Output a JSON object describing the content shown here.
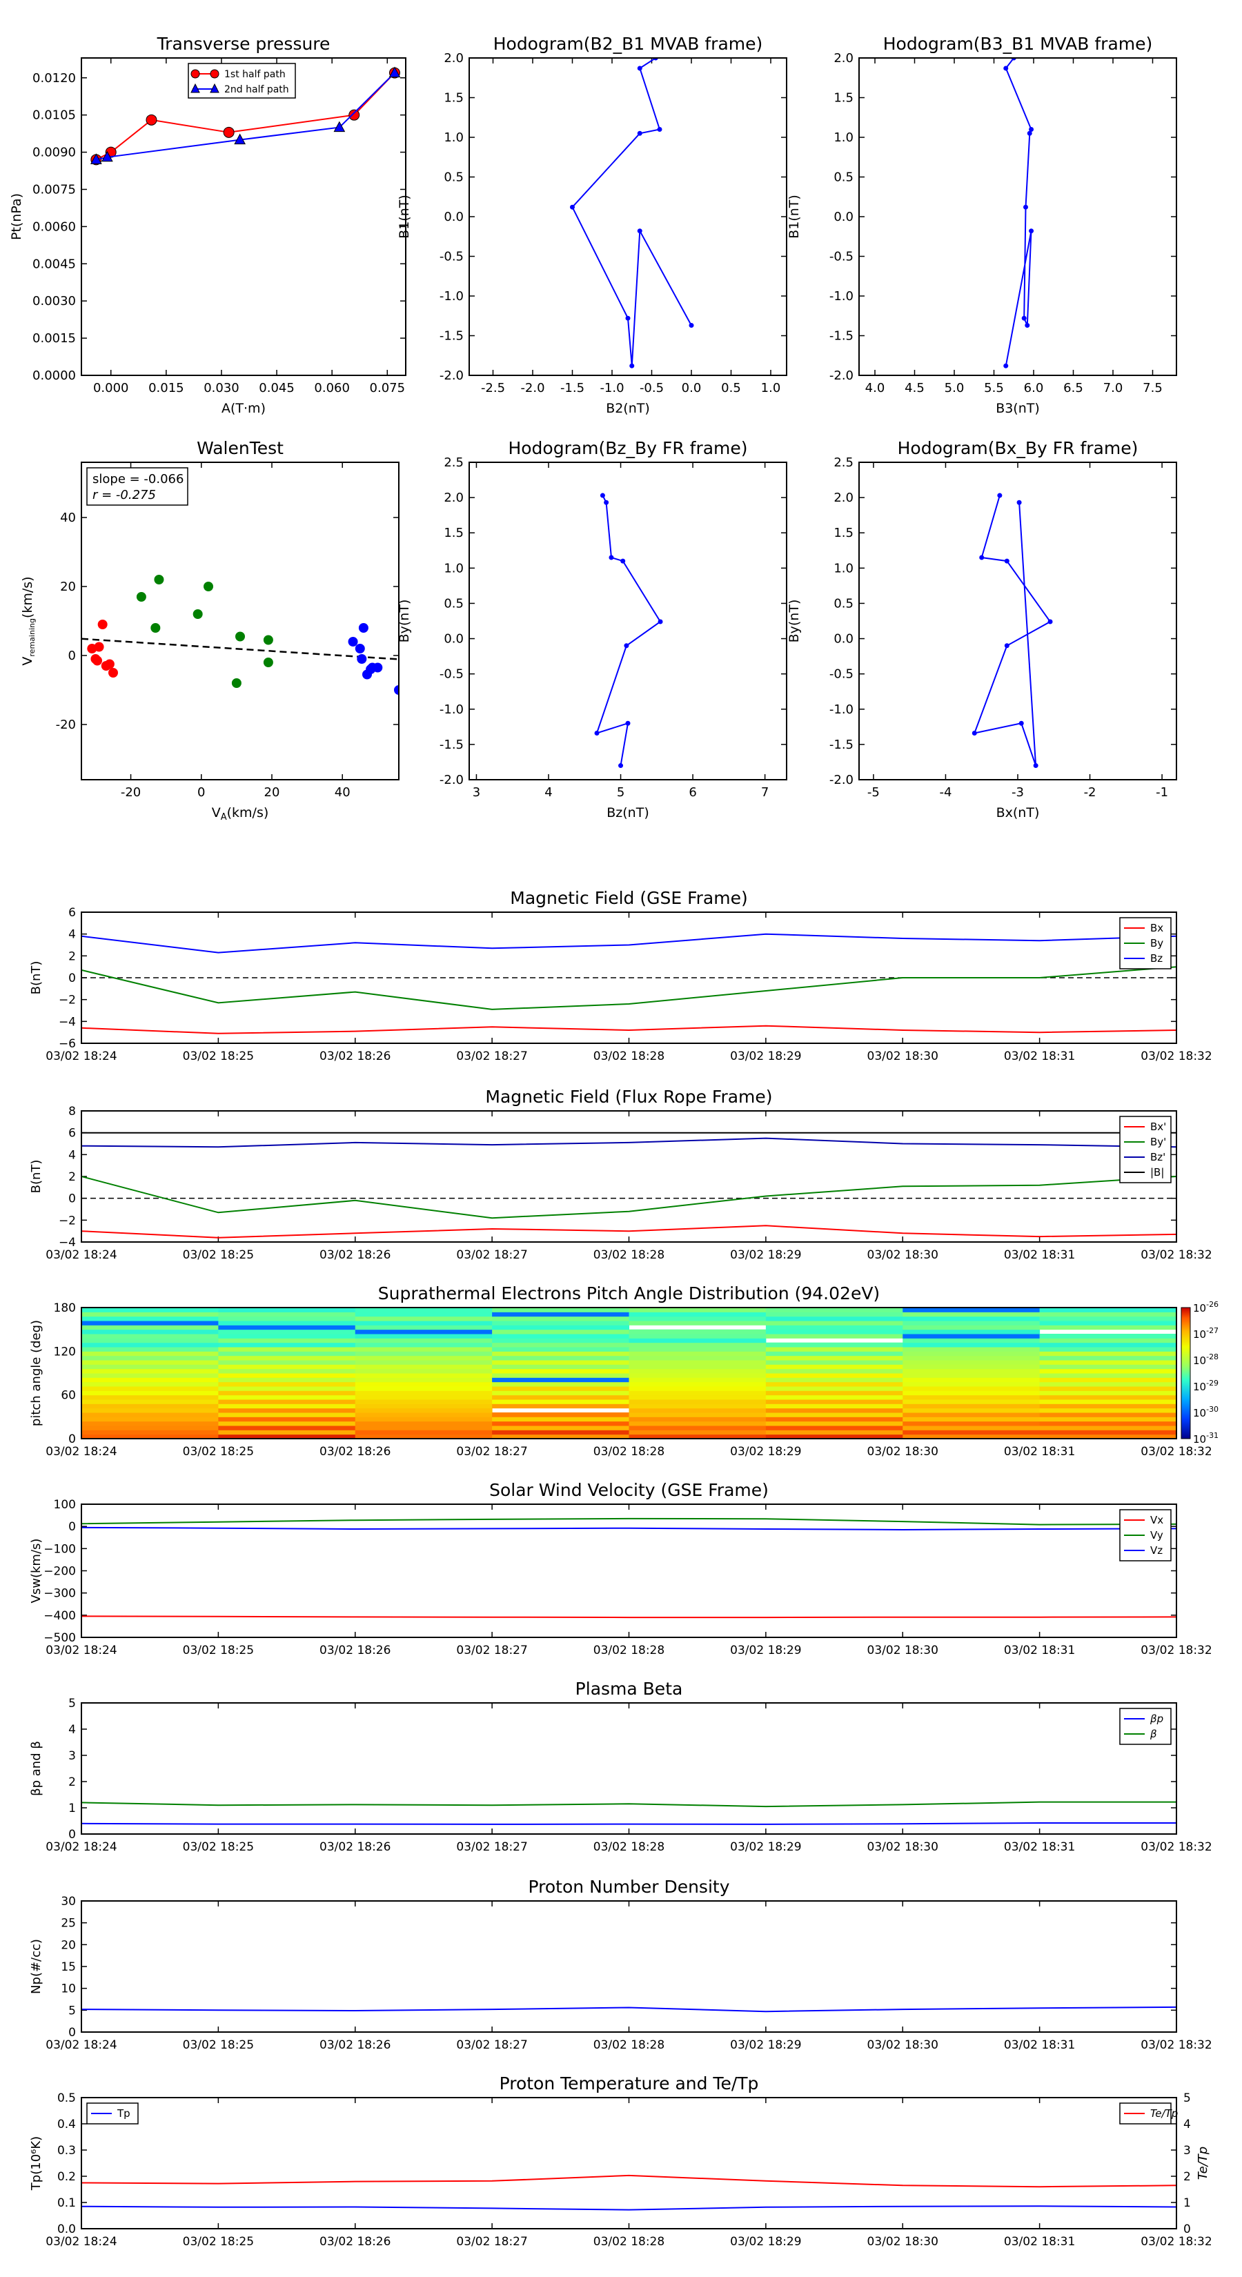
{
  "chart_data": [
    {
      "id": "transverse",
      "type": "line",
      "title": "Transverse pressure",
      "xlabel": "A(T·m)",
      "ylabel": "Pt(nPa)",
      "xlim": [
        -0.008,
        0.08
      ],
      "ylim": [
        0,
        0.0128
      ],
      "xticks": [
        "0.000",
        "0.015",
        "0.030",
        "0.045",
        "0.060",
        "0.075"
      ],
      "yticks": [
        "0.0000",
        "0.0015",
        "0.0030",
        "0.0045",
        "0.0060",
        "0.0075",
        "0.0090",
        "0.0105",
        "0.0120"
      ],
      "legend": "top-center",
      "series": [
        {
          "name": "1st half path",
          "color": "#ff0000",
          "marker": "circle",
          "x": [
            -0.004,
            0.0,
            0.011,
            0.032,
            0.066,
            0.077
          ],
          "y": [
            0.0087,
            0.009,
            0.0103,
            0.0098,
            0.0105,
            0.0122
          ]
        },
        {
          "name": "2nd half path",
          "color": "#0000ff",
          "marker": "triangle",
          "x": [
            -0.004,
            -0.001,
            0.035,
            0.062,
            0.077
          ],
          "y": [
            0.0087,
            0.0088,
            0.0095,
            0.01,
            0.0122
          ]
        }
      ]
    },
    {
      "id": "hodo_b2b1",
      "type": "line",
      "title": "Hodogram(B2_B1 MVAB frame)",
      "xlabel": "B2(nT)",
      "ylabel": "B1(nT)",
      "xlim": [
        -2.8,
        1.2
      ],
      "ylim": [
        -2.0,
        2.0
      ],
      "xticks": [
        "-2.5",
        "-2.0",
        "-1.5",
        "-1.0",
        "-0.5",
        "0.0",
        "0.5",
        "1.0"
      ],
      "yticks": [
        "-2.0",
        "-1.5",
        "-1.0",
        "-0.5",
        "0.0",
        "0.5",
        "1.0",
        "1.5",
        "2.0"
      ],
      "series": [
        {
          "color": "#0000ff",
          "x": [
            -0.45,
            -0.65,
            -0.4,
            -0.65,
            -1.5,
            -0.8,
            -0.75,
            -0.65,
            0.0
          ],
          "y": [
            2.0,
            1.87,
            1.1,
            1.05,
            0.12,
            -1.28,
            -1.88,
            -0.18,
            -1.37
          ]
        }
      ]
    },
    {
      "id": "hodo_b3b1",
      "type": "line",
      "title": "Hodogram(B3_B1 MVAB frame)",
      "xlabel": "B3(nT)",
      "ylabel": "B1(nT)",
      "xlim": [
        3.8,
        7.8
      ],
      "ylim": [
        -2.0,
        2.0
      ],
      "xticks": [
        "4.0",
        "4.5",
        "5.0",
        "5.5",
        "6.0",
        "6.5",
        "7.0",
        "7.5"
      ],
      "yticks": [
        "-2.0",
        "-1.5",
        "-1.0",
        "-0.5",
        "0.0",
        "0.5",
        "1.0",
        "1.5",
        "2.0"
      ],
      "series": [
        {
          "color": "#0000ff",
          "x": [
            5.75,
            5.65,
            5.97,
            5.95,
            5.9,
            5.88,
            5.92,
            5.97,
            5.65
          ],
          "y": [
            2.0,
            1.87,
            1.1,
            1.05,
            0.12,
            -1.28,
            -1.37,
            -0.18,
            -1.88
          ]
        }
      ]
    },
    {
      "id": "walen",
      "type": "scatter",
      "title": "WalenTest",
      "xlabel": "V_A(km/s)",
      "ylabel": "V_remaining(km/s)",
      "xlim": [
        -34,
        56
      ],
      "ylim": [
        -36,
        56
      ],
      "xticks": [
        "-20",
        "0",
        "20",
        "40"
      ],
      "xtickvals": [
        -20,
        0,
        20,
        40
      ],
      "yticks": [
        "-20",
        "0",
        "20",
        "40"
      ],
      "ytickvals": [
        -20,
        0,
        20,
        40
      ],
      "annotation": [
        "slope = -0.066",
        "r = -0.275"
      ],
      "fit": {
        "slope": -0.066,
        "intercept": 2.6,
        "color": "#000000"
      },
      "series": [
        {
          "color": "#ff0000",
          "x": [
            -31,
            -29,
            -28,
            -30,
            -29.5,
            -27,
            -26,
            -25
          ],
          "y": [
            2,
            2.5,
            9,
            -1,
            -1.5,
            -3,
            -2.5,
            -5
          ]
        },
        {
          "color": "#008000",
          "x": [
            -17,
            -12,
            -13,
            2,
            -1,
            11,
            10,
            19,
            19
          ],
          "y": [
            17,
            22,
            8,
            20,
            12,
            5.5,
            -8,
            4.5,
            -2
          ]
        },
        {
          "color": "#0000ff",
          "x": [
            43,
            46,
            45,
            45.5,
            48,
            48.5,
            50,
            47,
            56
          ],
          "y": [
            4,
            8,
            2,
            -1,
            -4,
            -3.5,
            -3.5,
            -5.5,
            -10
          ]
        }
      ]
    },
    {
      "id": "hodo_bzby",
      "type": "line",
      "title": "Hodogram(Bz_By FR frame)",
      "xlabel": "Bz(nT)",
      "ylabel": "By(nT)",
      "xlim": [
        2.9,
        7.3
      ],
      "ylim": [
        -2.0,
        2.5
      ],
      "xticks": [
        "3",
        "4",
        "5",
        "6",
        "7"
      ],
      "xtickvals": [
        3,
        4,
        5,
        6,
        7
      ],
      "yticks": [
        "-2.0",
        "-1.5",
        "-1.0",
        "-0.5",
        "0.0",
        "0.5",
        "1.0",
        "1.5",
        "2.0",
        "2.5"
      ],
      "series": [
        {
          "color": "#0000ff",
          "x": [
            4.75,
            4.8,
            4.87,
            5.03,
            5.55,
            5.08,
            4.67,
            5.1,
            5.0
          ],
          "y": [
            2.03,
            1.93,
            1.15,
            1.1,
            0.24,
            -0.1,
            -1.34,
            -1.2,
            -1.8
          ]
        }
      ]
    },
    {
      "id": "hodo_bxby",
      "type": "line",
      "title": "Hodogram(Bx_By FR frame)",
      "xlabel": "Bx(nT)",
      "ylabel": "By(nT)",
      "xlim": [
        -5.2,
        -0.8
      ],
      "ylim": [
        -2.0,
        2.5
      ],
      "xticks": [
        "-5",
        "-4",
        "-3",
        "-2",
        "-1"
      ],
      "xtickvals": [
        -5,
        -4,
        -3,
        -2,
        -1
      ],
      "yticks": [
        "-2.0",
        "-1.5",
        "-1.0",
        "-0.5",
        "0.0",
        "0.5",
        "1.0",
        "1.5",
        "2.0",
        "2.5"
      ],
      "series": [
        {
          "color": "#0000ff",
          "x": [
            -3.25,
            -3.5,
            -3.15,
            -2.55,
            -3.15,
            -3.6,
            -2.95,
            -2.75,
            -2.98
          ],
          "y": [
            2.03,
            1.15,
            1.1,
            0.24,
            -0.1,
            -1.34,
            -1.2,
            -1.8,
            1.93
          ]
        }
      ]
    },
    {
      "id": "mag_gse",
      "type": "line",
      "title": "Magnetic Field (GSE Frame)",
      "ylabel": "B(nT)",
      "ylim": [
        -6,
        6
      ],
      "yticks": [
        "−6",
        "−4",
        "−2",
        "0",
        "2",
        "4",
        "6"
      ],
      "ytickvals": [
        -6,
        -4,
        -2,
        0,
        2,
        4,
        6
      ],
      "zero_line": true,
      "legend": "top-right",
      "x": [
        0,
        1,
        2,
        3,
        4,
        5,
        6,
        7,
        8
      ],
      "series": [
        {
          "name": "Bx",
          "color": "#ff0000",
          "values": [
            -4.6,
            -5.1,
            -4.9,
            -4.5,
            -4.8,
            -4.4,
            -4.8,
            -5.0,
            -4.8
          ]
        },
        {
          "name": "By",
          "color": "#008000",
          "values": [
            0.7,
            -2.3,
            -1.3,
            -2.9,
            -2.4,
            -1.2,
            0.0,
            0.0,
            1.0
          ]
        },
        {
          "name": "Bz",
          "color": "#0000ff",
          "values": [
            3.8,
            2.3,
            3.2,
            2.7,
            3.0,
            4.0,
            3.6,
            3.4,
            3.8
          ]
        }
      ]
    },
    {
      "id": "mag_fr",
      "type": "line",
      "title": "Magnetic Field (Flux Rope Frame)",
      "ylabel": "B(nT)",
      "ylim": [
        -4,
        8
      ],
      "yticks": [
        "−4",
        "−2",
        "0",
        "2",
        "4",
        "6",
        "8"
      ],
      "ytickvals": [
        -4,
        -2,
        0,
        2,
        4,
        6,
        8
      ],
      "zero_line": true,
      "legend": "top-right",
      "x": [
        0,
        1,
        2,
        3,
        4,
        5,
        6,
        7,
        8
      ],
      "series": [
        {
          "name": "Bx'",
          "color": "#ff0000",
          "values": [
            -3.0,
            -3.6,
            -3.2,
            -2.8,
            -3.0,
            -2.5,
            -3.2,
            -3.5,
            -3.3
          ]
        },
        {
          "name": "By'",
          "color": "#008000",
          "values": [
            2.0,
            -1.3,
            -0.2,
            -1.8,
            -1.2,
            0.2,
            1.1,
            1.2,
            2.0
          ]
        },
        {
          "name": "Bz'",
          "color": "#0000aa",
          "values": [
            4.8,
            4.7,
            5.1,
            4.9,
            5.1,
            5.5,
            5.0,
            4.9,
            4.7
          ]
        },
        {
          "name": "|B|",
          "color": "#000000",
          "values": [
            6.0,
            6.0,
            6.0,
            6.0,
            6.0,
            6.0,
            6.0,
            6.0,
            6.0
          ]
        }
      ]
    },
    {
      "id": "pad",
      "type": "heatmap",
      "title": "Suprathermal Electrons Pitch Angle Distribution (94.02eV)",
      "ylabel": "pitch angle (deg)",
      "ylim": [
        0,
        180
      ],
      "yticks": [
        "0",
        "60",
        "120",
        "180"
      ],
      "ytickvals": [
        0,
        60,
        120,
        180
      ],
      "colorbar": {
        "ticks_base": [
          "10",
          "10",
          "10",
          "10",
          "10",
          "10"
        ],
        "ticks_exp": [
          "-26",
          "-27",
          "-28",
          "-29",
          "-30",
          "-31"
        ]
      }
    },
    {
      "id": "vsw",
      "type": "line",
      "title": "Solar Wind Velocity (GSE Frame)",
      "ylabel": "Vsw(km/s)",
      "ylim": [
        -500,
        100
      ],
      "yticks": [
        "−500",
        "−400",
        "−300",
        "−200",
        "−100",
        "0",
        "100"
      ],
      "ytickvals": [
        -500,
        -400,
        -300,
        -200,
        -100,
        0,
        100
      ],
      "legend": "top-right",
      "x": [
        0,
        1,
        2,
        3,
        4,
        5,
        6,
        7,
        8
      ],
      "series": [
        {
          "name": "Vx",
          "color": "#ff0000",
          "values": [
            -405,
            -406,
            -408,
            -409,
            -410,
            -410,
            -409,
            -409,
            -408
          ]
        },
        {
          "name": "Vy",
          "color": "#008000",
          "values": [
            12,
            20,
            28,
            32,
            35,
            34,
            22,
            8,
            10
          ]
        },
        {
          "name": "Vz",
          "color": "#0000ff",
          "values": [
            -5,
            -8,
            -12,
            -10,
            -8,
            -12,
            -15,
            -12,
            -10
          ]
        }
      ]
    },
    {
      "id": "beta",
      "type": "line",
      "title": "Plasma Beta",
      "ylabel": "βp and β",
      "ylim": [
        0,
        5
      ],
      "yticks": [
        "0",
        "1",
        "2",
        "3",
        "4",
        "5"
      ],
      "ytickvals": [
        0,
        1,
        2,
        3,
        4,
        5
      ],
      "legend": "top-right",
      "x": [
        0,
        1,
        2,
        3,
        4,
        5,
        6,
        7,
        8
      ],
      "series": [
        {
          "name": "βp",
          "color": "#0000ff",
          "values": [
            0.4,
            0.38,
            0.38,
            0.37,
            0.38,
            0.37,
            0.39,
            0.42,
            0.42
          ]
        },
        {
          "name": "β",
          "color": "#008000",
          "values": [
            1.2,
            1.1,
            1.12,
            1.1,
            1.15,
            1.05,
            1.12,
            1.22,
            1.22
          ]
        }
      ]
    },
    {
      "id": "density",
      "type": "line",
      "title": "Proton Number Density",
      "ylabel": "Np(#/cc)",
      "ylim": [
        0,
        30
      ],
      "yticks": [
        "0",
        "5",
        "10",
        "15",
        "20",
        "25",
        "30"
      ],
      "ytickvals": [
        0,
        5,
        10,
        15,
        20,
        25,
        30
      ],
      "x": [
        0,
        1,
        2,
        3,
        4,
        5,
        6,
        7,
        8
      ],
      "series": [
        {
          "color": "#0000ff",
          "values": [
            5.2,
            5.0,
            4.9,
            5.2,
            5.6,
            4.7,
            5.2,
            5.5,
            5.7
          ]
        }
      ]
    },
    {
      "id": "temp",
      "type": "line",
      "title": "Proton Temperature and Te/Tp",
      "ylabel": "Tp(10⁶K)",
      "ylabel2": "Te/Tp",
      "ylim": [
        0,
        0.5
      ],
      "ylim2": [
        0,
        5
      ],
      "yticks": [
        "0.0",
        "0.1",
        "0.2",
        "0.3",
        "0.4",
        "0.5"
      ],
      "ytickvals": [
        0,
        0.1,
        0.2,
        0.3,
        0.4,
        0.5
      ],
      "yticks2": [
        "0",
        "1",
        "2",
        "3",
        "4",
        "5"
      ],
      "ytickvals2": [
        0,
        1,
        2,
        3,
        4,
        5
      ],
      "legend": "top-left",
      "legend2": "top-right",
      "x": [
        0,
        1,
        2,
        3,
        4,
        5,
        6,
        7,
        8
      ],
      "series": [
        {
          "name": "Tp",
          "color": "#0000ff",
          "axis": "left",
          "values": [
            0.085,
            0.082,
            0.083,
            0.078,
            0.072,
            0.082,
            0.085,
            0.086,
            0.083
          ]
        },
        {
          "name": "Te/Tp",
          "color": "#ff0000",
          "axis": "right",
          "values": [
            1.75,
            1.72,
            1.8,
            1.82,
            2.03,
            1.82,
            1.65,
            1.6,
            1.65
          ]
        }
      ]
    }
  ],
  "time_ticks": [
    "03/02 18:24",
    "03/02 18:25",
    "03/02 18:26",
    "03/02 18:27",
    "03/02 18:28",
    "03/02 18:29",
    "03/02 18:30",
    "03/02 18:31",
    "03/02 18:32"
  ],
  "colors": {
    "red": "#ff0000",
    "green": "#008000",
    "blue": "#0000ff",
    "black": "#000000"
  }
}
